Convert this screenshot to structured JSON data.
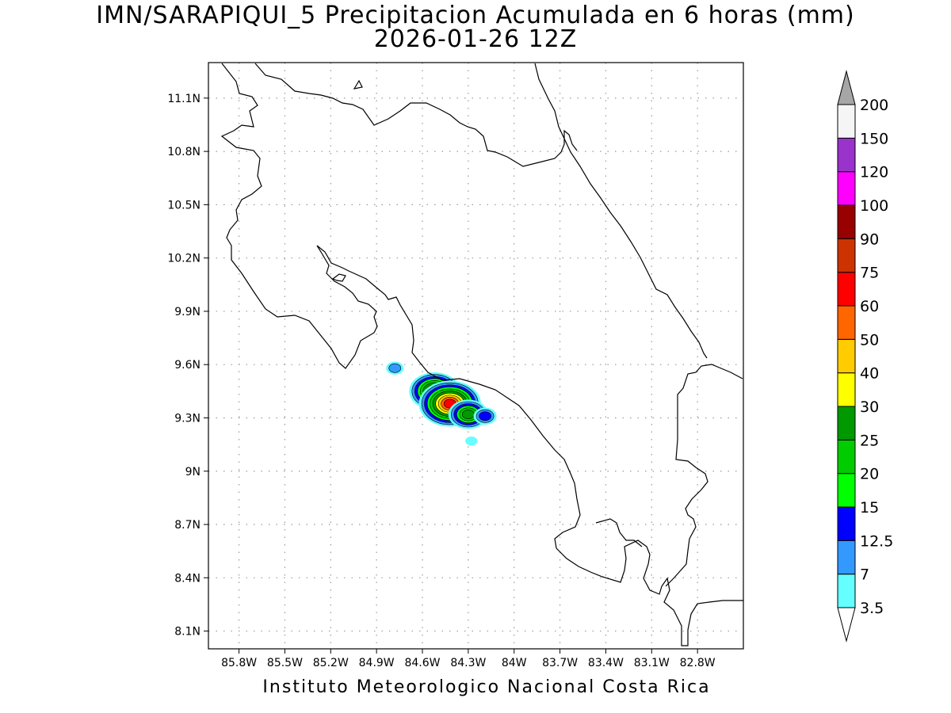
{
  "title": "IMN/SARAPIQUI_5 Precipitacion Acumulada en 6 horas (mm)",
  "subtitle": "2026-01-26 12Z",
  "footer": "Instituto Meteorologico Nacional Costa Rica",
  "axes": {
    "lat_labels": [
      "11.1N",
      "10.8N",
      "10.5N",
      "10.2N",
      "9.9N",
      "9.6N",
      "9.3N",
      "9N",
      "8.7N",
      "8.4N",
      "8.1N"
    ],
    "lat_values": [
      11.1,
      10.8,
      10.5,
      10.2,
      9.9,
      9.6,
      9.3,
      9.0,
      8.7,
      8.4,
      8.1
    ],
    "lon_labels": [
      "85.8W",
      "85.5W",
      "85.2W",
      "84.9W",
      "84.6W",
      "84.3W",
      "84W",
      "83.7W",
      "83.4W",
      "83.1W",
      "82.8W"
    ],
    "lon_values": [
      -85.8,
      -85.5,
      -85.2,
      -84.9,
      -84.6,
      -84.3,
      -84.0,
      -83.7,
      -83.4,
      -83.1,
      -82.8
    ],
    "lon_range": [
      -86.0,
      -82.5
    ],
    "lat_range": [
      8.0,
      11.3
    ],
    "grid": "dotted"
  },
  "colorbar": {
    "levels": [
      "3.5",
      "7",
      "12.5",
      "15",
      "20",
      "25",
      "30",
      "40",
      "50",
      "60",
      "75",
      "90",
      "100",
      "120",
      "150",
      "200"
    ],
    "colors": [
      "#66ffff",
      "#3399ff",
      "#0000ff",
      "#00ff00",
      "#00cc00",
      "#009900",
      "#ffff00",
      "#ffcc00",
      "#ff6600",
      "#ff0000",
      "#cc3300",
      "#990000",
      "#ff00ff",
      "#9933cc",
      "#f5f5f5",
      "#a6a6a6"
    ],
    "low_end_color": "#ffffff",
    "high_end_color": "#a6a6a6"
  },
  "precip_cells": [
    {
      "lon": -84.78,
      "lat": 9.58,
      "value": 7
    },
    {
      "lon": -84.52,
      "lat": 9.45,
      "value": 40
    },
    {
      "lon": -84.42,
      "lat": 9.38,
      "value": 60
    },
    {
      "lon": -84.3,
      "lat": 9.32,
      "value": 25
    },
    {
      "lon": -84.19,
      "lat": 9.31,
      "value": 12.5
    },
    {
      "lon": -84.28,
      "lat": 9.17,
      "value": 3.5
    }
  ]
}
